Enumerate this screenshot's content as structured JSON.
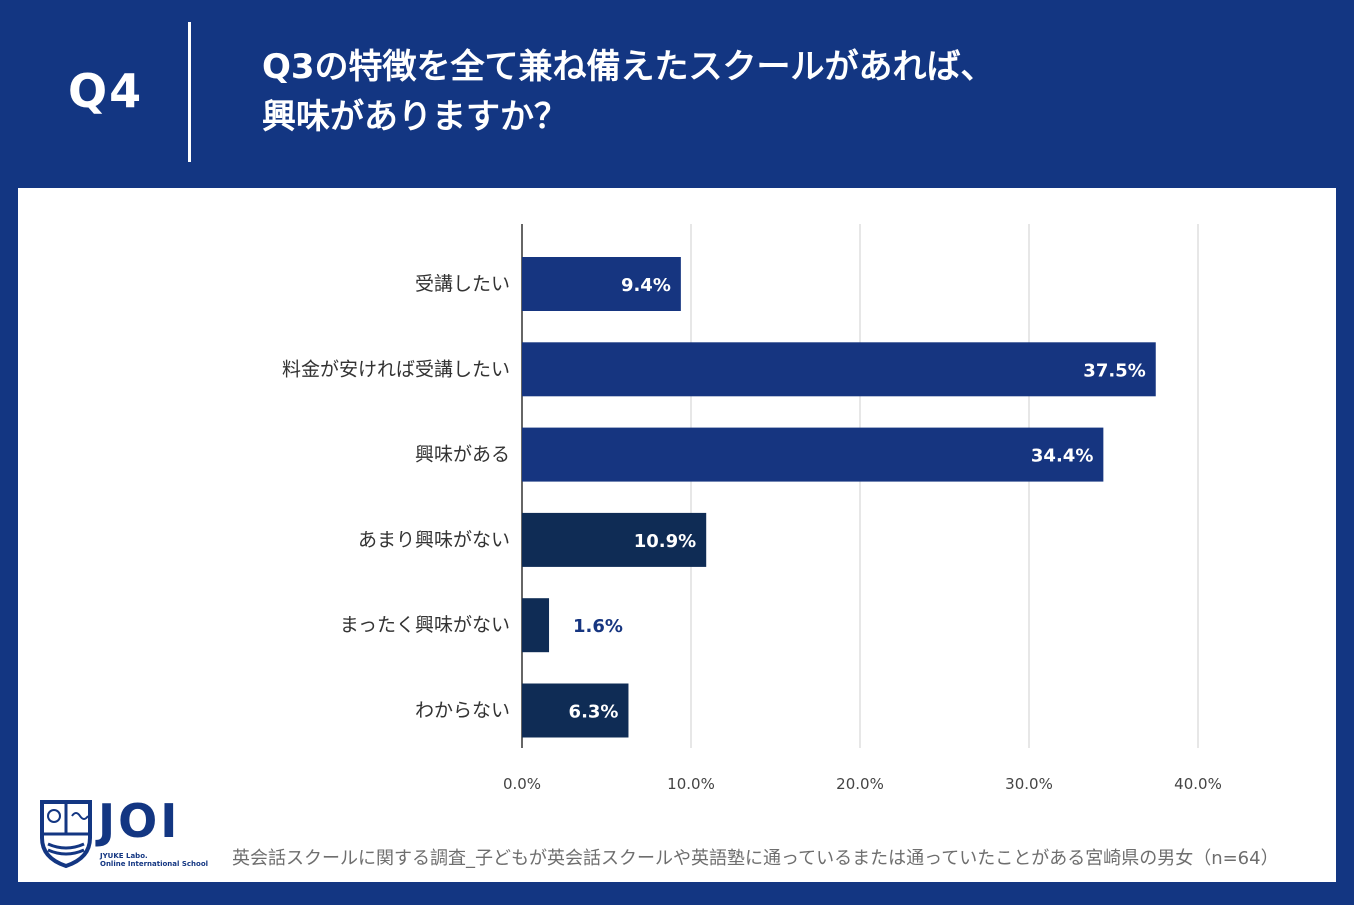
{
  "header": {
    "q_label": "Q4",
    "question_line1": "Q3の特徴を全て兼ね備えたスクールがあれば、",
    "question_line2": "興味がありますか？"
  },
  "colors": {
    "background": "#133682",
    "bar_primary": "#163580",
    "bar_secondary": "#0f2c55",
    "label_outside": "#163580"
  },
  "chart_data": {
    "type": "bar",
    "orientation": "horizontal",
    "categories": [
      "受講したい",
      "料金が安ければ受講したい",
      "興味がある",
      "あまり興味がない",
      "まったく興味がない",
      "わからない"
    ],
    "values": [
      9.4,
      37.5,
      34.4,
      10.9,
      1.6,
      6.3
    ],
    "value_labels": [
      "9.4%",
      "37.5%",
      "34.4%",
      "10.9%",
      "1.6%",
      "6.3%"
    ],
    "x_ticks": [
      "0.0%",
      "10.0%",
      "20.0%",
      "30.0%",
      "40.0%"
    ],
    "xlim": [
      0,
      40
    ],
    "grid": true
  },
  "footer": {
    "note": "英会話スクールに関する調査_子どもが英会話スクールや英語塾に通っているまたは通っていたことがある宮崎県の男女（n=64）"
  },
  "logo": {
    "text": "JOI",
    "sub1": "JYUKE Labo.",
    "sub2": "Online International School"
  }
}
